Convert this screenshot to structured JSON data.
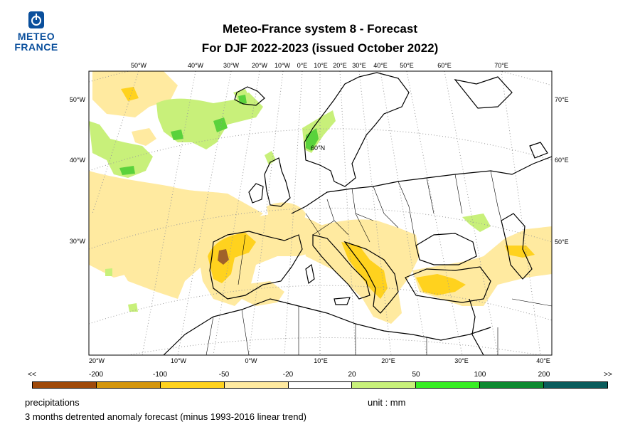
{
  "header": {
    "logo_lines": [
      "METEO",
      "FRANCE"
    ],
    "title": "Meteo-France system 8  -  Forecast",
    "subtitle": "For DJF 2022-2023      (issued October 2022)"
  },
  "map": {
    "top_lon_labels": [
      "50°W",
      "40°W",
      "30°W",
      "20°W",
      "10°W",
      "0°E",
      "10°E",
      "20°E",
      "30°E",
      "40°E",
      "50°E",
      "60°E",
      "70°E"
    ],
    "bottom_lon_labels": [
      "20°W",
      "10°W",
      "0°W",
      "10°E",
      "20°E",
      "30°E",
      "40°E"
    ],
    "left_lat_labels": [
      "50°W",
      "40°W",
      "30°W"
    ],
    "right_lat_labels": [
      "70°E",
      "60°E",
      "50°E"
    ],
    "inner_label": "60°N",
    "colors": {
      "coast": "#000000",
      "gridline": "#9a9a9a",
      "anomaly_light_yellow": "#ffeaa0",
      "anomaly_yellow": "#ffd21e",
      "anomaly_orange": "#e0a020",
      "anomaly_brown": "#a0622a",
      "anomaly_light_green": "#c8f07a",
      "anomaly_green": "#5ad23c"
    }
  },
  "legend": {
    "labels": [
      "<<",
      "-200",
      "-100",
      "-50",
      "-20",
      "20",
      "50",
      "100",
      "200",
      ">>"
    ],
    "colors": [
      "#a04a0a",
      "#d4960e",
      "#ffd21e",
      "#ffeaa0",
      "#ffffff",
      "#c8f07a",
      "#38ee24",
      "#0e8a30",
      "#0a5c5c"
    ]
  },
  "footer": {
    "variable": "precipitations",
    "unit": "unit : mm",
    "description": "3 months detrented anomaly forecast (minus 1993-2016 linear trend)"
  }
}
